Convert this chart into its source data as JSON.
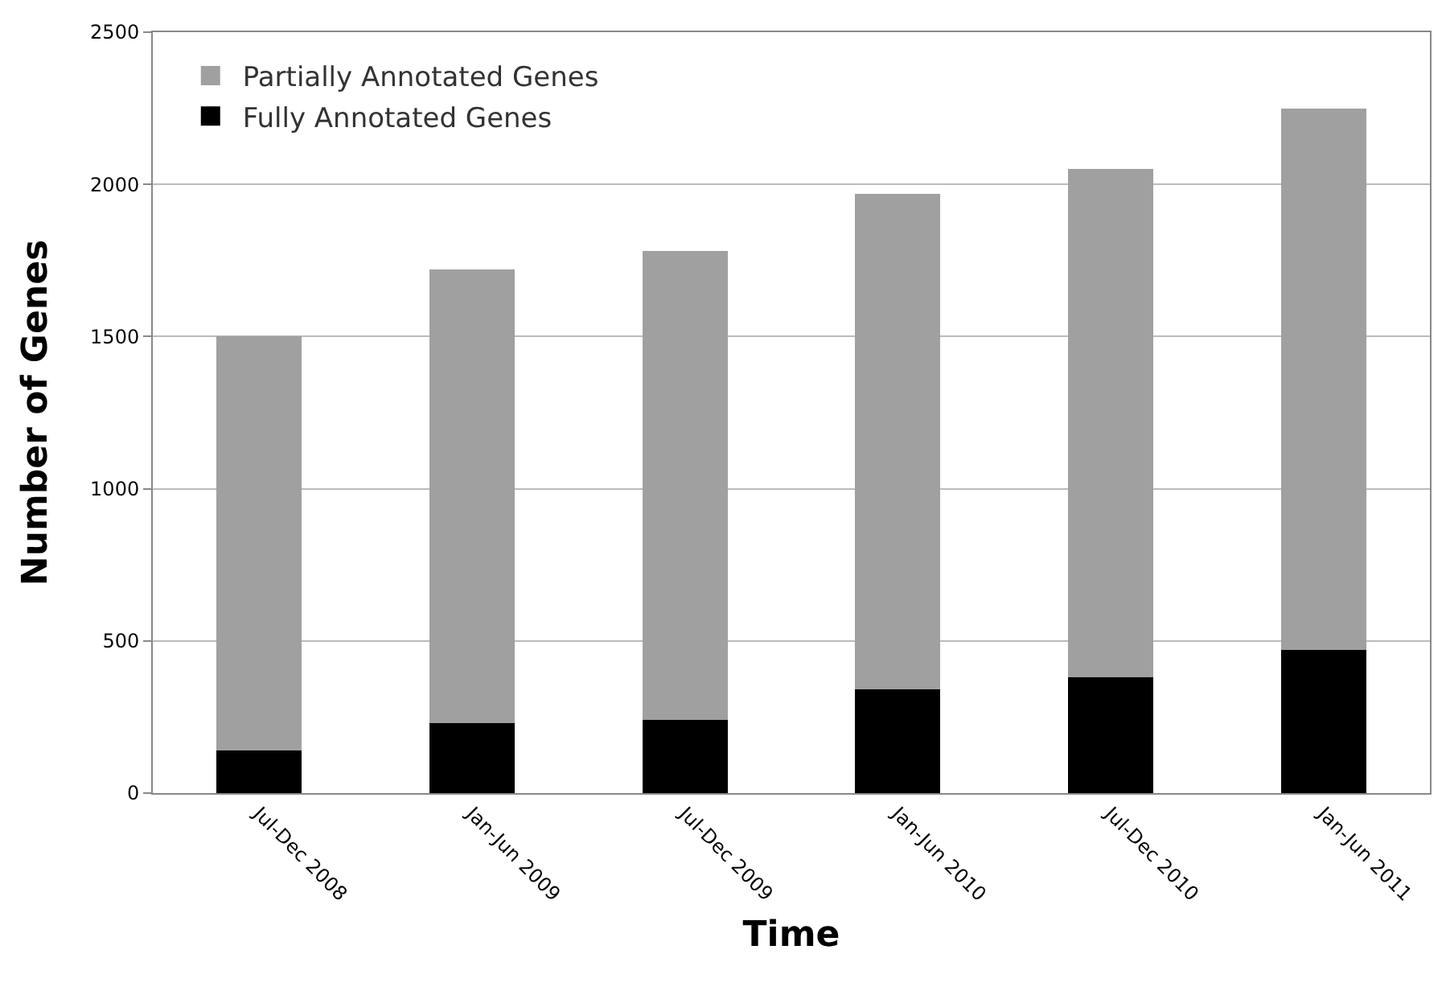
{
  "chart_data": {
    "type": "bar",
    "stacked": true,
    "xlabel": "Time",
    "ylabel": "Number of Genes",
    "categories": [
      "Jul-Dec 2008",
      "Jan-Jun 2009",
      "Jul-Dec 2009",
      "Jan-Jun 2010",
      "Jul-Dec 2010",
      "Jan-Jun 2011"
    ],
    "series": [
      {
        "name": "Fully Annotated Genes",
        "color": "#000000",
        "values": [
          140,
          230,
          240,
          340,
          380,
          470
        ]
      },
      {
        "name": "Partially Annotated Genes",
        "color": "#a0a0a0",
        "values": [
          1360,
          1490,
          1540,
          1630,
          1670,
          1780
        ]
      }
    ],
    "ylim": [
      0,
      2500
    ],
    "yticks": [
      0,
      500,
      1000,
      1500,
      2000,
      2500
    ],
    "grid": "y",
    "legend": "top left"
  }
}
